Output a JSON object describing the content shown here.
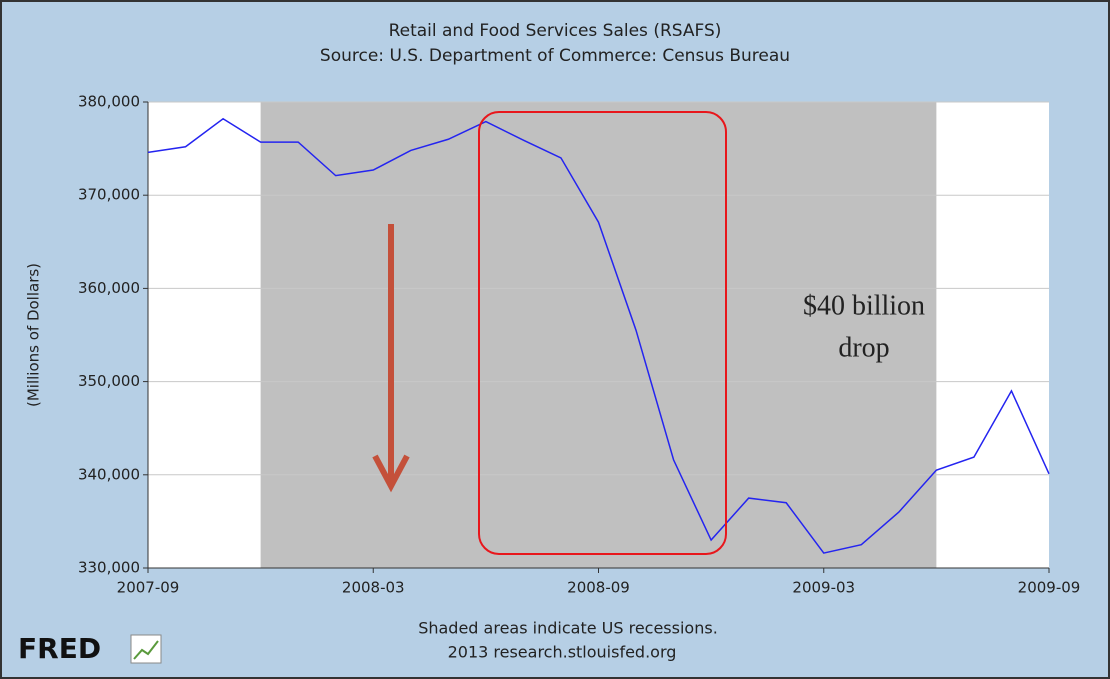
{
  "chart_data": {
    "type": "line",
    "title": "Retail and Food Services Sales (RSAFS)",
    "subtitle": "Source: U.S. Department of Commerce: Census Bureau",
    "y_label": "(Millions of Dollars)",
    "x": [
      "2007-09",
      "2007-10",
      "2007-11",
      "2007-12",
      "2008-01",
      "2008-02",
      "2008-03",
      "2008-04",
      "2008-05",
      "2008-06",
      "2008-07",
      "2008-08",
      "2008-09",
      "2008-10",
      "2008-11",
      "2008-12",
      "2009-01",
      "2009-02",
      "2009-03",
      "2009-04",
      "2009-05",
      "2009-06",
      "2009-07",
      "2009-08",
      "2009-09"
    ],
    "series": [
      {
        "name": "RSAFS",
        "color": "#2424f0",
        "values": [
          374600,
          375200,
          378200,
          375700,
          375700,
          372100,
          372700,
          374800,
          376000,
          377900,
          375900,
          374000,
          367100,
          355500,
          341600,
          333000,
          337500,
          337000,
          331600,
          332500,
          336000,
          340500,
          341900,
          349000,
          340100
        ]
      }
    ],
    "xticks": [
      "2007-09",
      "2008-03",
      "2008-09",
      "2009-03",
      "2009-09"
    ],
    "ylim": [
      330000,
      380000
    ],
    "yticks": [
      {
        "value": 330000,
        "label": "330,000"
      },
      {
        "value": 340000,
        "label": "340,000"
      },
      {
        "value": 350000,
        "label": "350,000"
      },
      {
        "value": 360000,
        "label": "360,000"
      },
      {
        "value": 370000,
        "label": "370,000"
      },
      {
        "value": 380000,
        "label": "380,000"
      }
    ],
    "grid": true,
    "recession": {
      "start": "2007-12",
      "end": "2009-06",
      "color": "#c0c0c0"
    },
    "annotation": [
      "$40 billion",
      "drop"
    ],
    "footnote": "Shaded areas indicate US recessions.",
    "source": "2013 research.stlouisfed.org",
    "logo": "FRED"
  }
}
